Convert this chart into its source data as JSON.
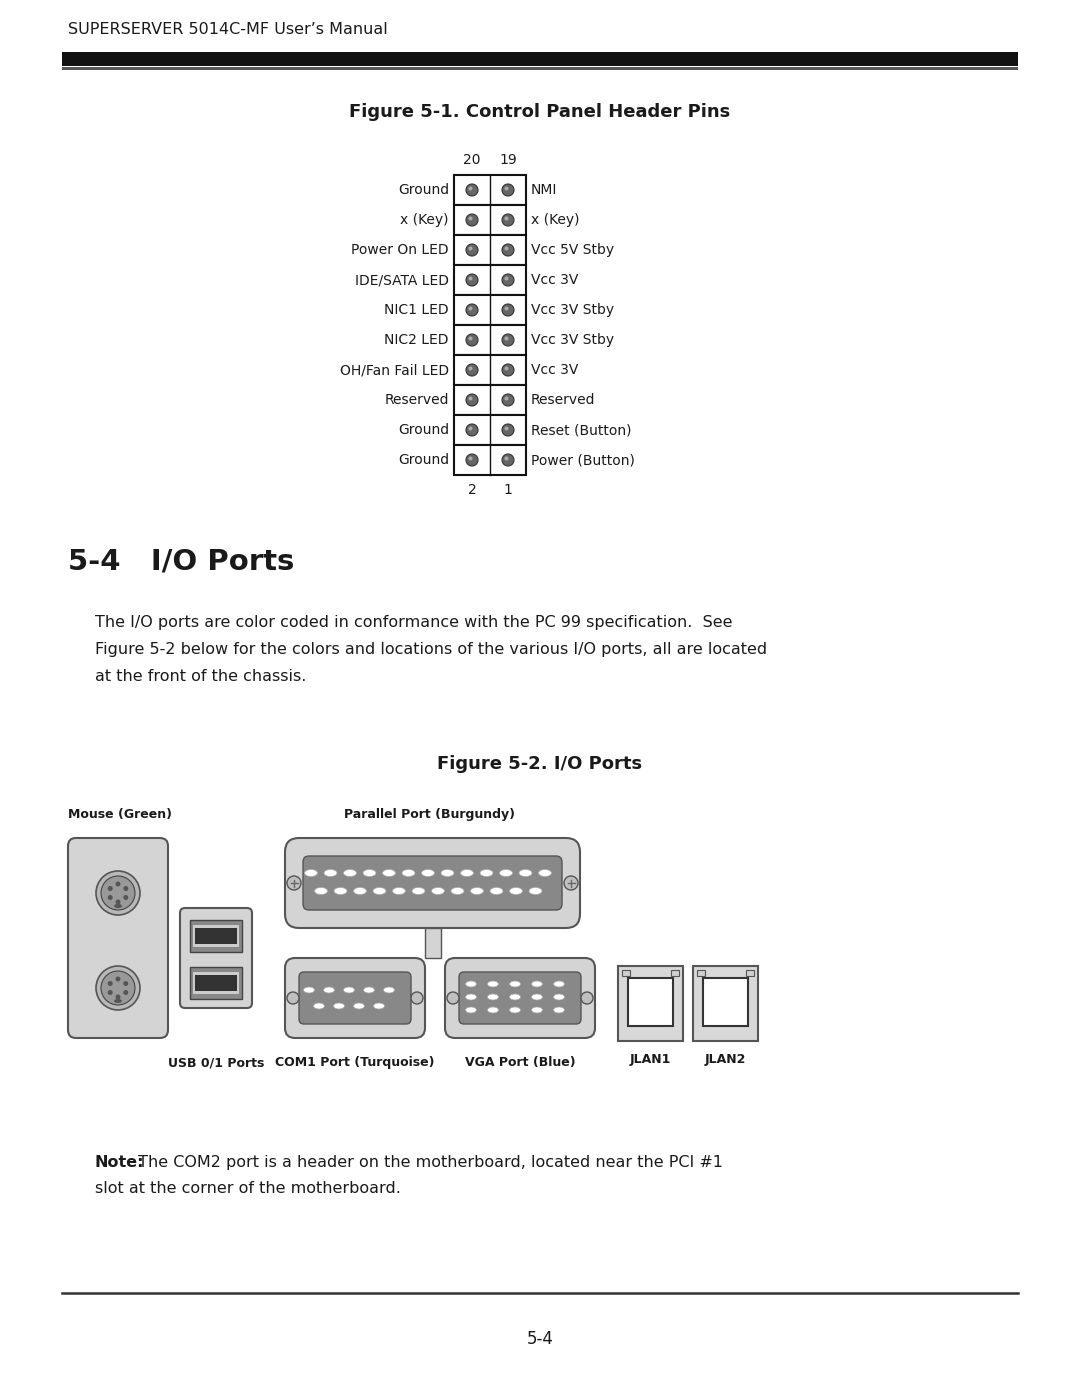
{
  "page_title": "SUPERSERVER 5014C-MF User’s Manual",
  "figure1_title": "Figure 5-1. Control Panel Header Pins",
  "figure2_title": "Figure 5-2. I/O Ports",
  "section_title": "5-4   I/O Ports",
  "body_text_lines": [
    "The I/O ports are color coded in conformance with the PC 99 specification.  See",
    "Figure 5-2 below for the colors and locations of the various I/O ports, all are located",
    "at the front of the chassis."
  ],
  "note_bold": "Note:",
  "note_line1": " The COM2 port is a header on the motherboard, located near the PCI #1",
  "note_line2": "slot at the corner of the motherboard.",
  "page_number": "5-4",
  "pin_rows": [
    {
      "left": "Ground",
      "right": "NMI"
    },
    {
      "left": "x (Key)",
      "right": "x (Key)"
    },
    {
      "left": "Power On LED",
      "right": "Vcc 5V Stby"
    },
    {
      "left": "IDE/SATA LED",
      "right": "Vcc 3V"
    },
    {
      "left": "NIC1 LED",
      "right": "Vcc 3V Stby"
    },
    {
      "left": "NIC2 LED",
      "right": "Vcc 3V Stby"
    },
    {
      "left": "OH/Fan Fail LED",
      "right": "Vcc 3V"
    },
    {
      "left": "Reserved",
      "right": "Reserved"
    },
    {
      "left": "Ground",
      "right": "Reset (Button)"
    },
    {
      "left": "Ground",
      "right": "Power (Button)"
    }
  ],
  "bg_color": "#ffffff",
  "text_color": "#1a1a1a",
  "pin_dot_color": "#666666",
  "pin_box_border": "#111111",
  "header_bar_color": "#111111",
  "header_bar_thin": "#555555"
}
